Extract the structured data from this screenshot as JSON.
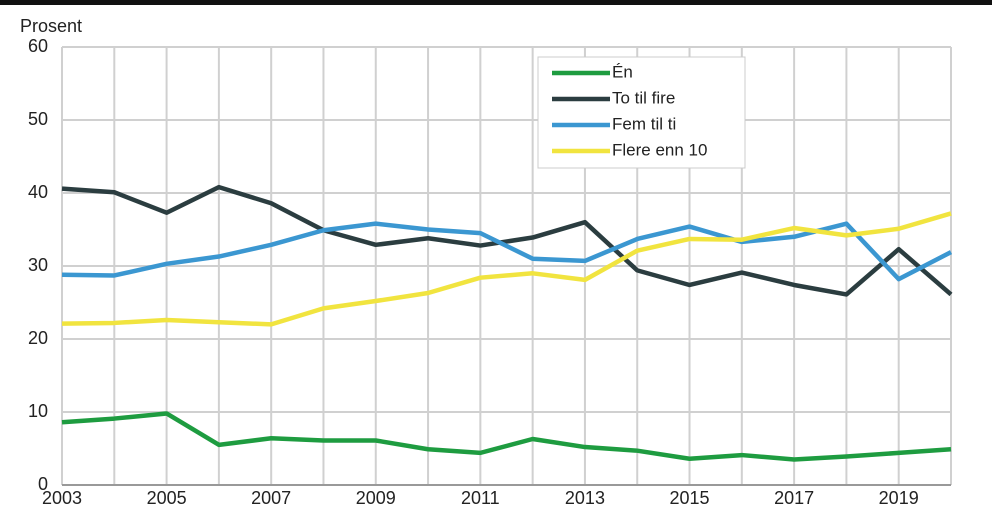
{
  "chart_data": {
    "type": "line",
    "y_label": "Prosent",
    "categories": [
      "2003",
      null,
      "2005",
      null,
      "2007",
      null,
      "2009",
      null,
      "2011",
      null,
      "2013",
      null,
      "2015",
      null,
      "2017",
      null,
      "2019",
      null
    ],
    "series": [
      {
        "name": "Én",
        "color": "#1e9c40",
        "values": [
          8.6,
          9.1,
          9.8,
          5.5,
          6.4,
          6.1,
          6.1,
          4.9,
          4.4,
          6.3,
          5.2,
          4.7,
          3.6,
          4.1,
          3.5,
          3.9,
          4.4,
          4.9
        ]
      },
      {
        "name": "To til fire",
        "color": "#2b3d40",
        "values": [
          40.6,
          40.1,
          37.3,
          40.8,
          38.6,
          34.9,
          32.9,
          33.8,
          32.8,
          33.9,
          36.0,
          29.4,
          27.4,
          29.1,
          27.4,
          26.1,
          32.3,
          26.1
        ]
      },
      {
        "name": "Fem til ti",
        "color": "#3b97d1",
        "values": [
          28.8,
          28.7,
          30.3,
          31.3,
          32.9,
          34.9,
          35.8,
          35.0,
          34.5,
          31.0,
          30.7,
          33.7,
          35.4,
          33.3,
          34.0,
          35.8,
          28.2,
          31.9
        ]
      },
      {
        "name": "Flere enn 10",
        "color": "#f1e43f",
        "values": [
          22.1,
          22.2,
          22.6,
          22.3,
          22.0,
          24.2,
          25.2,
          26.3,
          28.4,
          29.0,
          28.1,
          32.1,
          33.7,
          33.6,
          35.2,
          34.2,
          35.1,
          37.2
        ]
      }
    ],
    "ylim": [
      0,
      60
    ],
    "yticks": [
      0,
      10,
      20,
      30,
      40,
      50,
      60
    ],
    "grid": true,
    "legend": "upper center"
  }
}
